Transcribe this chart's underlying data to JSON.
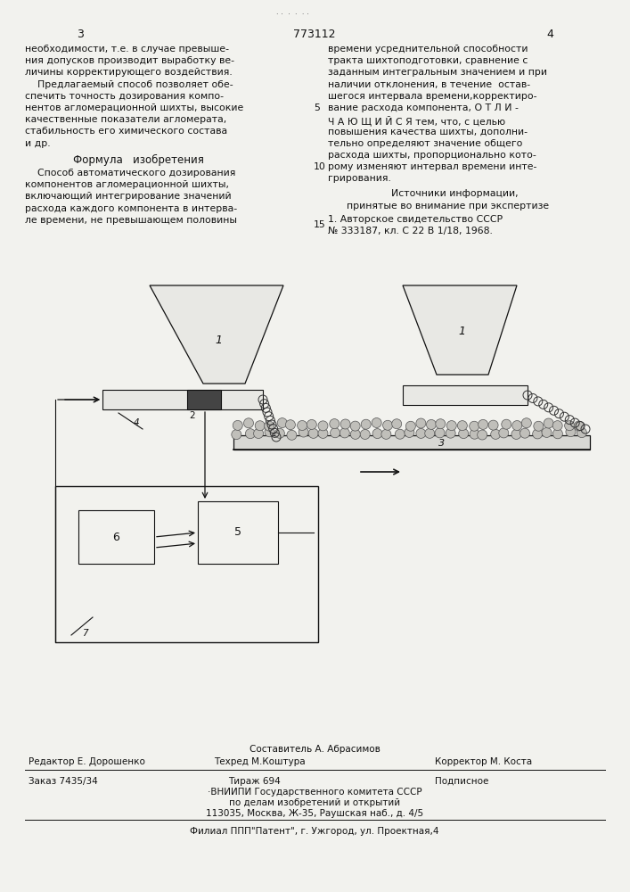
{
  "bg_color": "#f2f2ee",
  "page_num_left": "3",
  "page_num_center": "773112",
  "page_num_right": "4",
  "left_col_lines": [
    "необходимости, т.е. в случае превыше-",
    "ния допусков производит выработку ве-",
    "личины корректирующего воздействия.",
    "    Предлагаемый способ позволяет обе-",
    "спечить точность дозирования компо-",
    "нентов агломерационной шихты, высокие",
    "качественные показатели агломерата,",
    "стабильность его химического состава",
    "и др."
  ],
  "formula_heading": "Формула   изобретения",
  "formula_lines": [
    "    Способ автоматического дозирования",
    "компонентов агломерационной шихты,",
    "включающий интегрирование значений",
    "расхода каждого компонента в интерва-",
    "ле времени, не превышающем половины"
  ],
  "right_col_lines": [
    "времени усреднительной способности",
    "тракта шихтоподготовки, сравнение с",
    "заданным интегральным значением и при",
    "наличии отклонения, в течение  остав-",
    "шегося интервала времени,корректиро-",
    "вание расхода компонента, О Т Л И -",
    "Ч А Ю Щ И Й С Я тем, что, с целью",
    "повышения качества шихты, дополни-",
    "тельно определяют значение общего",
    "расхода шихты, пропорционально кото-",
    "рому изменяют интервал времени инте-",
    "грирования."
  ],
  "sources_heading": "Источники информации,",
  "sources_sub": "принятые во внимание при экспертизе",
  "source1a": "1. Авторское свидетельство СССР",
  "source1b": "№ 333187, кл. С 22 В 1/18, 1968.",
  "num5": "5",
  "num10": "10",
  "num15": "15",
  "footer_sostavitel": "Составитель А. Абрасимов",
  "footer_redaktor": "Редактор Е. Дорошенко",
  "footer_tehred": "Техред М.Коштура",
  "footer_korrektor": "Корректор М. Коста",
  "footer_zakaz": "Заказ 7435/34",
  "footer_tirazh": "Тираж 694",
  "footer_podpisnoe": "Подписное",
  "footer_vniip": "ВНИИПИ Государственного комитета СССР",
  "footer_dept": "по делам изобретений и открытий",
  "footer_addr": "113035, Москва, Ж-35, Раушская наб., д. 4/5",
  "footer_filial": "Филиал ППП\"Патент\", г. Ужгород, ул. Проектная,4"
}
